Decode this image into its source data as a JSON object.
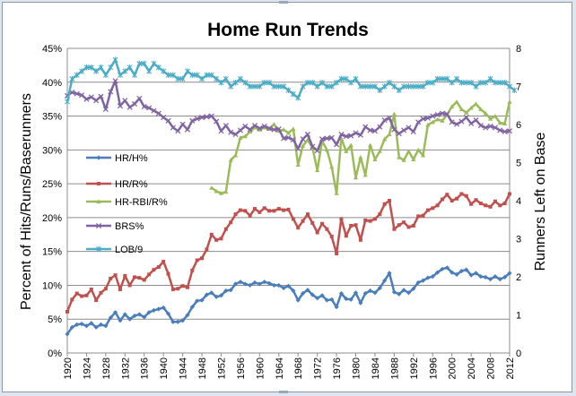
{
  "chart_data": {
    "type": "line",
    "title": "Home Run Trends",
    "ylabel": "Percent of Hits/Runs/Baserunners",
    "y2label": "Runners Left on Base",
    "ylim": [
      0,
      45
    ],
    "y2lim": [
      0,
      8
    ],
    "yticks": [
      "0%",
      "5%",
      "10%",
      "15%",
      "20%",
      "25%",
      "30%",
      "35%",
      "40%",
      "45%"
    ],
    "y2ticks": [
      "0",
      "1",
      "2",
      "3",
      "4",
      "5",
      "6",
      "7",
      "8"
    ],
    "xlim": [
      1920,
      2012
    ],
    "xticks": [
      "1920",
      "1924",
      "1928",
      "1932",
      "1936",
      "1940",
      "1944",
      "1948",
      "1952",
      "1956",
      "1960",
      "1964",
      "1968",
      "1972",
      "1976",
      "1980",
      "1984",
      "1988",
      "1992",
      "1996",
      "2000",
      "2004",
      "2008",
      "2012"
    ],
    "grid": true,
    "legend_position": "left",
    "series": [
      {
        "name": "HR/H%",
        "color": "#4a7ebb",
        "marker": "diamond",
        "axis": "left",
        "start": 1920,
        "values": [
          2.8,
          3.8,
          4.2,
          4.3,
          4.0,
          4.4,
          3.8,
          4.2,
          4.0,
          5.2,
          6.0,
          4.8,
          5.7,
          5.0,
          5.5,
          5.7,
          5.3,
          6.0,
          6.3,
          6.5,
          6.7,
          5.8,
          4.6,
          4.6,
          4.8,
          5.6,
          6.8,
          7.7,
          7.8,
          8.6,
          8.9,
          8.3,
          8.5,
          9.2,
          9.3,
          10.2,
          10.5,
          10.2,
          10.0,
          10.4,
          10.2,
          10.5,
          10.3,
          10.0,
          10.0,
          9.6,
          9.9,
          9.2,
          7.8,
          8.8,
          9.3,
          8.6,
          8.1,
          8.5,
          7.8,
          7.9,
          6.8,
          8.8,
          8.0,
          7.9,
          8.9,
          7.4,
          8.8,
          9.2,
          8.9,
          9.6,
          10.7,
          11.8,
          9.0,
          8.7,
          9.3,
          8.9,
          9.5,
          10.4,
          10.7,
          11.1,
          11.3,
          11.9,
          12.4,
          12.6,
          11.9,
          11.6,
          12.1,
          12.3,
          11.5,
          11.8,
          11.3,
          11.2,
          10.9,
          11.3,
          10.9,
          11.2,
          11.8
        ]
      },
      {
        "name": "HR/R%",
        "color": "#c0504d",
        "marker": "square",
        "axis": "left",
        "start": 1920,
        "values": [
          6.1,
          7.9,
          8.8,
          8.4,
          8.5,
          9.4,
          7.8,
          8.9,
          9.5,
          11.0,
          11.5,
          9.4,
          11.4,
          10.0,
          11.2,
          11.1,
          10.8,
          11.6,
          12.3,
          12.7,
          13.5,
          11.7,
          9.4,
          9.5,
          9.9,
          9.7,
          12.2,
          13.7,
          14.0,
          15.3,
          17.5,
          16.7,
          16.9,
          18.3,
          19.3,
          20.5,
          21.1,
          21.0,
          20.3,
          21.3,
          20.8,
          21.4,
          21.0,
          21.0,
          21.3,
          21.1,
          21.2,
          19.8,
          18.5,
          19.5,
          20.5,
          19.2,
          17.8,
          19.1,
          18.3,
          17.2,
          14.7,
          19.8,
          17.3,
          18.8,
          18.9,
          16.7,
          19.6,
          19.5,
          19.8,
          20.5,
          22.0,
          22.5,
          18.3,
          18.9,
          19.3,
          18.6,
          18.8,
          20.2,
          20.3,
          21.1,
          21.4,
          21.8,
          22.7,
          23.4,
          22.5,
          22.8,
          23.5,
          23.2,
          22.0,
          22.6,
          22.1,
          21.8,
          21.6,
          22.4,
          21.8,
          22.1,
          23.5
        ]
      },
      {
        "name": "HR-RBI/R%",
        "color": "#9bbb59",
        "marker": "triangle",
        "axis": "left",
        "start": 1950,
        "values": [
          24.4,
          23.9,
          23.6,
          23.8,
          28.5,
          29.2,
          31.8,
          32.0,
          32.7,
          33.3,
          33.0,
          33.3,
          33.1,
          33.8,
          32.8,
          33.0,
          32.5,
          33.1,
          27.8,
          30.6,
          31.5,
          30.3,
          27.0,
          31.3,
          30.0,
          27.5,
          23.6,
          31.7,
          29.8,
          30.7,
          25.9,
          28.9,
          26.3,
          30.7,
          28.6,
          29.8,
          31.6,
          32.3,
          35.3,
          28.9,
          28.5,
          29.8,
          28.6,
          30.0,
          29.2,
          33.7,
          34.1,
          34.5,
          34.3,
          35.2,
          36.4,
          37.1,
          36.0,
          35.5,
          36.2,
          36.8,
          36.0,
          35.4,
          34.6,
          35.0,
          34.0,
          33.9,
          37.1
        ]
      },
      {
        "name": "BRS%",
        "color": "#8064a2",
        "marker": "x",
        "axis": "left",
        "start": 1920,
        "values": [
          38.0,
          38.5,
          38.3,
          38.1,
          37.5,
          37.8,
          37.3,
          37.9,
          36.0,
          38.6,
          40.2,
          36.5,
          37.3,
          36.3,
          36.8,
          37.6,
          36.4,
          36.2,
          35.8,
          35.4,
          34.8,
          34.3,
          33.3,
          32.8,
          33.8,
          33.0,
          34.3,
          34.6,
          34.8,
          34.9,
          35.0,
          34.2,
          32.8,
          33.6,
          32.6,
          32.3,
          32.9,
          33.5,
          33.0,
          33.6,
          33.2,
          33.5,
          33.2,
          33.0,
          33.1,
          31.7,
          31.8,
          31.5,
          30.2,
          31.6,
          32.3,
          30.5,
          29.9,
          31.6,
          31.7,
          31.8,
          30.8,
          32.3,
          32.0,
          32.1,
          32.5,
          32.2,
          33.4,
          32.9,
          32.8,
          33.4,
          34.4,
          34.7,
          33.0,
          32.4,
          32.9,
          33.3,
          32.7,
          34.1,
          34.6,
          34.7,
          35.0,
          35.2,
          35.4,
          35.3,
          34.1,
          33.8,
          34.2,
          34.8,
          33.9,
          34.4,
          33.6,
          33.3,
          33.5,
          33.3,
          32.9,
          32.7,
          32.8
        ]
      },
      {
        "name": "LOB/9",
        "color": "#4bacc6",
        "marker": "star",
        "axis": "right",
        "start": 1920,
        "values": [
          6.6,
          7.2,
          7.3,
          7.4,
          7.5,
          7.5,
          7.4,
          7.5,
          7.3,
          7.5,
          7.7,
          7.3,
          7.4,
          7.5,
          7.3,
          7.6,
          7.6,
          7.4,
          7.6,
          7.5,
          7.4,
          7.3,
          7.3,
          7.2,
          7.2,
          7.4,
          7.3,
          7.3,
          7.2,
          7.3,
          7.3,
          7.2,
          7.1,
          7.2,
          7.0,
          7.1,
          7.2,
          7.1,
          7.0,
          7.0,
          7.0,
          7.1,
          7.1,
          7.0,
          7.0,
          7.0,
          6.9,
          6.8,
          6.7,
          7.0,
          7.1,
          7.1,
          7.0,
          7.1,
          7.0,
          7.0,
          7.1,
          7.2,
          7.2,
          7.1,
          7.2,
          7.0,
          7.0,
          7.0,
          7.0,
          6.9,
          7.0,
          7.1,
          7.0,
          6.9,
          7.0,
          7.0,
          7.0,
          7.0,
          7.0,
          7.1,
          7.1,
          7.2,
          7.2,
          7.2,
          7.1,
          7.2,
          7.1,
          7.1,
          7.1,
          7.0,
          7.1,
          7.1,
          7.2,
          7.1,
          7.1,
          7.1,
          7.0,
          6.9
        ]
      }
    ]
  }
}
